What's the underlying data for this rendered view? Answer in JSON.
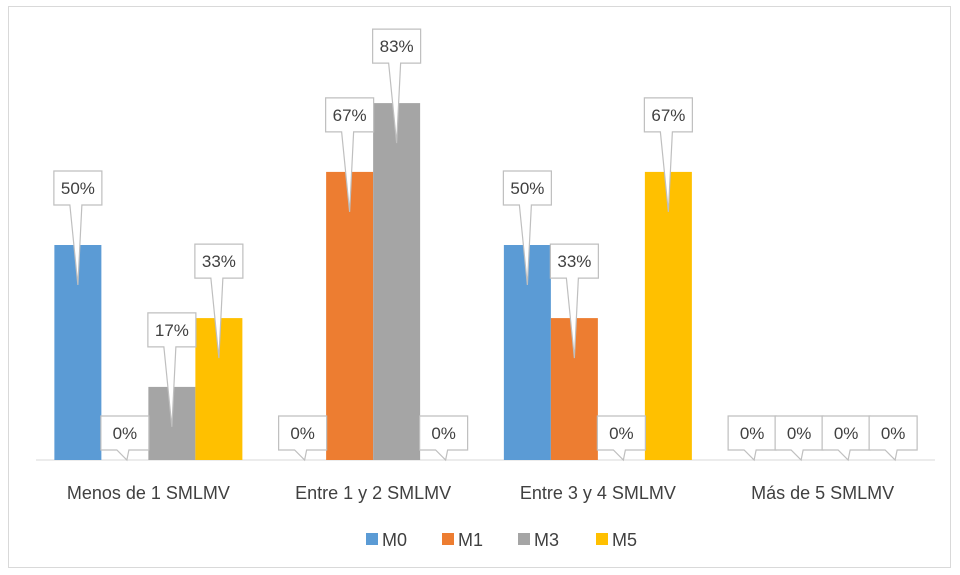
{
  "chart_data": {
    "type": "bar",
    "title": "",
    "xlabel": "",
    "ylabel": "",
    "ylim": [
      0,
      100
    ],
    "grid": false,
    "legend_position": "bottom",
    "categories": [
      "Menos de 1 SMLMV",
      "Entre 1 y 2 SMLMV",
      "Entre 3 y 4 SMLMV",
      "Más de 5 SMLMV"
    ],
    "series": [
      {
        "name": "M0",
        "color": "#5b9bd5",
        "values": [
          50,
          0,
          50,
          0
        ],
        "labels": [
          "50%",
          "0%",
          "50%",
          "0%"
        ]
      },
      {
        "name": "M1",
        "color": "#ed7d31",
        "values": [
          0,
          67,
          33,
          0
        ],
        "labels": [
          "0%",
          "67%",
          "33%",
          "0%"
        ]
      },
      {
        "name": "M3",
        "color": "#a5a5a5",
        "values": [
          17,
          83,
          0,
          0
        ],
        "labels": [
          "17%",
          "83%",
          "0%",
          "0%"
        ]
      },
      {
        "name": "M5",
        "color": "#ffc000",
        "values": [
          33,
          0,
          67,
          0
        ],
        "labels": [
          "33%",
          "0%",
          "67%",
          "0%"
        ]
      }
    ]
  }
}
